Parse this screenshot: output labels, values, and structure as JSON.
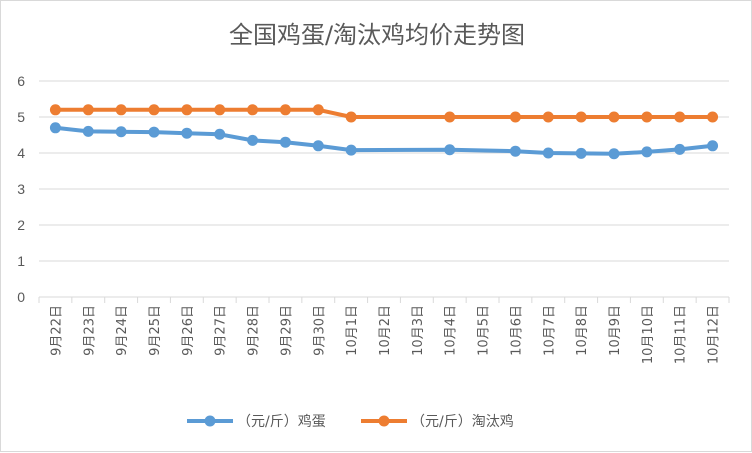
{
  "chart_data": {
    "type": "line",
    "title": "全国鸡蛋/淘汰鸡均价走势图",
    "xlabel": "",
    "ylabel": "",
    "ylim": [
      0,
      6
    ],
    "yticks": [
      "0",
      "1",
      "2",
      "3",
      "4",
      "5",
      "6"
    ],
    "grid": true,
    "legend_position": "bottom",
    "categories": [
      "9月22日",
      "9月23日",
      "9月24日",
      "9月25日",
      "9月26日",
      "9月27日",
      "9月28日",
      "9月29日",
      "9月30日",
      "10月1日",
      "10月2日",
      "10月3日",
      "10月4日",
      "10月5日",
      "10月6日",
      "10月7日",
      "10月8日",
      "10月9日",
      "10月10日",
      "10月11日",
      "10月12日"
    ],
    "series": [
      {
        "name": "（元/斤）鸡蛋",
        "color": "#5B9BD5",
        "values": [
          4.7,
          4.6,
          4.59,
          4.58,
          4.55,
          4.52,
          4.35,
          4.3,
          4.2,
          4.08,
          null,
          null,
          4.09,
          null,
          4.05,
          4.0,
          3.99,
          3.98,
          4.03,
          4.1,
          4.2
        ]
      },
      {
        "name": "（元/斤）淘汰鸡",
        "color": "#ED7D31",
        "values": [
          5.2,
          5.2,
          5.2,
          5.2,
          5.2,
          5.2,
          5.2,
          5.2,
          5.2,
          5.0,
          null,
          null,
          5.0,
          null,
          5.0,
          5.0,
          5.0,
          5.0,
          5.0,
          5.0,
          5.0
        ]
      }
    ]
  }
}
